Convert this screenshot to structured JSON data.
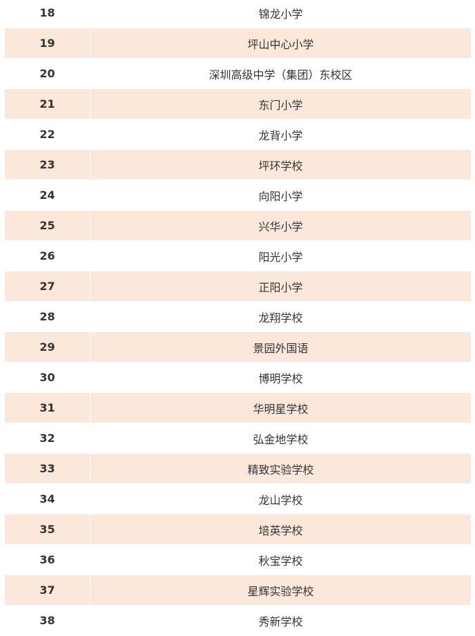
{
  "table": {
    "rows": [
      {
        "rank": "18",
        "school": "锦龙小学"
      },
      {
        "rank": "19",
        "school": "坪山中心小学"
      },
      {
        "rank": "20",
        "school": "深圳高级中学（集团）东校区"
      },
      {
        "rank": "21",
        "school": "东门小学"
      },
      {
        "rank": "22",
        "school": "龙背小学"
      },
      {
        "rank": "23",
        "school": "坪环学校"
      },
      {
        "rank": "24",
        "school": "向阳小学"
      },
      {
        "rank": "25",
        "school": "兴华小学"
      },
      {
        "rank": "26",
        "school": "阳光小学"
      },
      {
        "rank": "27",
        "school": "正阳小学"
      },
      {
        "rank": "28",
        "school": "龙翔学校"
      },
      {
        "rank": "29",
        "school": "景园外国语"
      },
      {
        "rank": "30",
        "school": "博明学校"
      },
      {
        "rank": "31",
        "school": "华明星学校"
      },
      {
        "rank": "32",
        "school": "弘金地学校"
      },
      {
        "rank": "33",
        "school": "精致实验学校"
      },
      {
        "rank": "34",
        "school": "龙山学校"
      },
      {
        "rank": "35",
        "school": "培英学校"
      },
      {
        "rank": "36",
        "school": "秋宝学校"
      },
      {
        "rank": "37",
        "school": "星辉实验学校"
      },
      {
        "rank": "38",
        "school": "秀新学校"
      }
    ],
    "colors": {
      "shaded_row": "#fce8da",
      "text": "#333333"
    }
  }
}
